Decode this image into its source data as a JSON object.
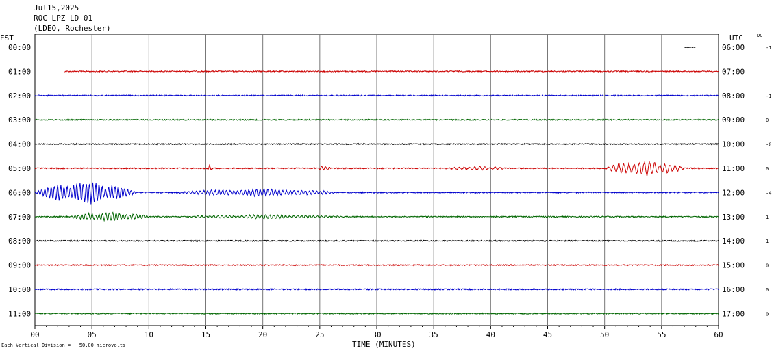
{
  "header": {
    "date": "Jul15,2025",
    "station": "ROC LPZ LD 01",
    "network": "(LDEO, Rochester)"
  },
  "left_zone_label": "EST",
  "right_zone_label": "UTC",
  "dc_label": "DC",
  "xaxis_label": "TIME (MINUTES)",
  "footnote": "Each Vertical Division =   50.00 microvolts",
  "chart_data": {
    "type": "line",
    "title": "ROC LPZ LD 01",
    "xlabel": "TIME (MINUTES)",
    "xlim": [
      0,
      60
    ],
    "x_ticks": [
      "00",
      "05",
      "10",
      "15",
      "20",
      "25",
      "30",
      "35",
      "40",
      "45",
      "50",
      "55",
      "60"
    ],
    "vertical_division_microvolts": 50.0,
    "grid": true,
    "colors": [
      "#cc0000",
      "#0000cc",
      "#006600",
      "#000000"
    ],
    "rows": [
      {
        "est": "00:00",
        "utc": "06:00",
        "dc": "-1",
        "color": "#000000",
        "start_min": 57.0,
        "end_min": 58.0,
        "amplitude": 0.6
      },
      {
        "est": "01:00",
        "utc": "07:00",
        "dc": "",
        "color": "#cc0000",
        "start_min": 2.6,
        "end_min": 60,
        "amplitude": 0.8
      },
      {
        "est": "02:00",
        "utc": "08:00",
        "dc": "-1",
        "color": "#0000cc",
        "start_min": 0,
        "end_min": 60,
        "amplitude": 0.8
      },
      {
        "est": "03:00",
        "utc": "09:00",
        "dc": "0",
        "color": "#006600",
        "start_min": 0,
        "end_min": 60,
        "amplitude": 0.8
      },
      {
        "est": "04:00",
        "utc": "10:00",
        "dc": "-0",
        "color": "#000000",
        "start_min": 0,
        "end_min": 60,
        "amplitude": 0.8
      },
      {
        "est": "05:00",
        "utc": "11:00",
        "dc": "0",
        "color": "#cc0000",
        "start_min": 0,
        "end_min": 60,
        "amplitude": 0.8,
        "events": [
          {
            "t": 15.1,
            "dur": 0.6,
            "amp": 4,
            "period": 0.3
          },
          {
            "t": 24.9,
            "dur": 1.5,
            "amp": 4,
            "period": 0.35
          },
          {
            "t": 36.0,
            "dur": 8,
            "amp": 3,
            "period": 0.45
          },
          {
            "t": 50.0,
            "dur": 10,
            "amp": 12,
            "period": 0.45
          }
        ]
      },
      {
        "est": "06:00",
        "utc": "12:00",
        "dc": "-4",
        "color": "#0000cc",
        "start_min": 0,
        "end_min": 60,
        "amplitude": 0.8,
        "events": [
          {
            "t": 0.1,
            "dur": 12.5,
            "amp": 18,
            "period": 0.28
          },
          {
            "t": 12.6,
            "dur": 20,
            "amp": 6,
            "period": 0.33
          }
        ]
      },
      {
        "est": "07:00",
        "utc": "13:00",
        "dc": "1",
        "color": "#006600",
        "start_min": 0,
        "end_min": 60,
        "amplitude": 0.8,
        "events": [
          {
            "t": 3.0,
            "dur": 10,
            "amp": 7,
            "period": 0.3
          },
          {
            "t": 13.0,
            "dur": 20,
            "amp": 3,
            "period": 0.35
          }
        ]
      },
      {
        "est": "08:00",
        "utc": "14:00",
        "dc": "1",
        "color": "#000000",
        "start_min": 0,
        "end_min": 60,
        "amplitude": 0.8
      },
      {
        "est": "09:00",
        "utc": "15:00",
        "dc": "0",
        "color": "#cc0000",
        "start_min": 0,
        "end_min": 60,
        "amplitude": 0.8
      },
      {
        "est": "10:00",
        "utc": "16:00",
        "dc": "0",
        "color": "#0000cc",
        "start_min": 0,
        "end_min": 60,
        "amplitude": 0.9
      },
      {
        "est": "11:00",
        "utc": "17:00",
        "dc": "0",
        "color": "#006600",
        "start_min": 0,
        "end_min": 60,
        "amplitude": 0.8
      }
    ]
  }
}
